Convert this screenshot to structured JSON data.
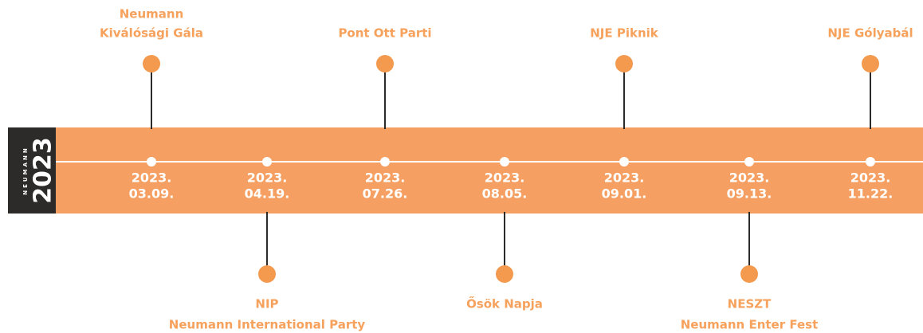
{
  "logo": {
    "brand": "NEUMANN",
    "year": "2023"
  },
  "events": [
    {
      "side": "top",
      "title_lines": [
        "Neumann",
        "Kiválósági Gála"
      ],
      "date_year": "2023.",
      "date_day": "03.09."
    },
    {
      "side": "bottom",
      "title_lines": [
        "NIP",
        "Neumann International Party"
      ],
      "date_year": "2023.",
      "date_day": "04.19."
    },
    {
      "side": "top",
      "title_lines": [
        "Pont Ott Parti"
      ],
      "date_year": "2023.",
      "date_day": "07.26."
    },
    {
      "side": "bottom",
      "title_lines": [
        "Ősök Napja"
      ],
      "date_year": "2023.",
      "date_day": "08.05."
    },
    {
      "side": "top",
      "title_lines": [
        "NJE Piknik"
      ],
      "date_year": "2023.",
      "date_day": "09.01."
    },
    {
      "side": "bottom",
      "title_lines": [
        "NESZT",
        "Neumann Enter Fest"
      ],
      "date_year": "2023.",
      "date_day": "09.13."
    },
    {
      "side": "top",
      "title_lines": [
        "NJE Gólyabál"
      ],
      "date_year": "2023.",
      "date_day": "11.22."
    }
  ]
}
